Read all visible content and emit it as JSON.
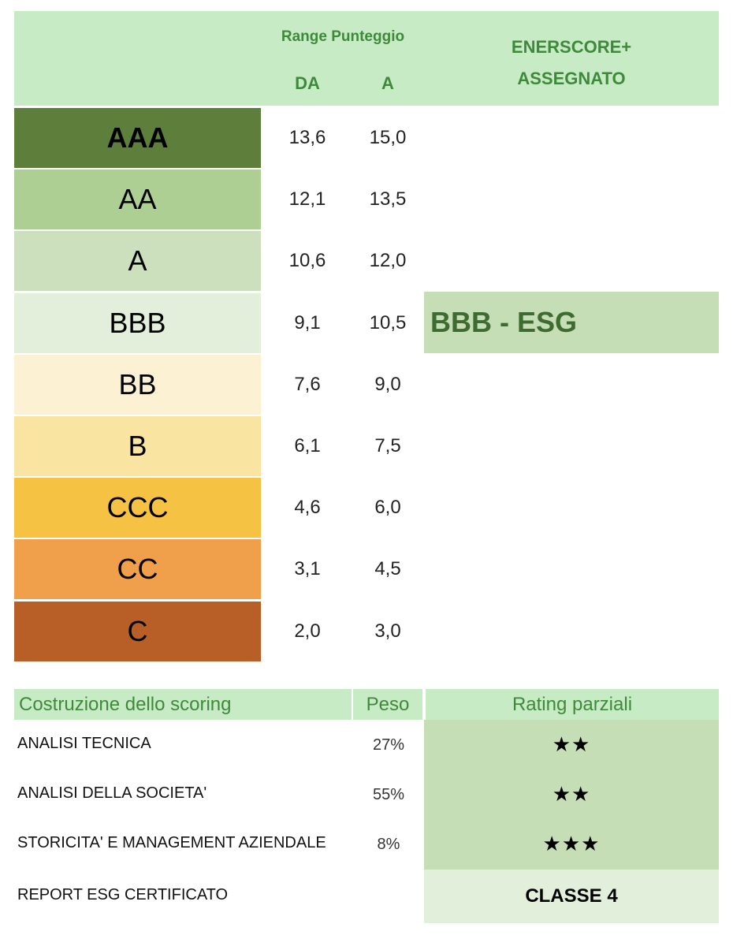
{
  "header": {
    "range_title": "Range Punteggio",
    "col_from": "DA",
    "col_to": "A",
    "assigned_title_1": "ENERSCORE+",
    "assigned_title_2": "ASSEGNATO"
  },
  "ratings": [
    {
      "grade": "AAA",
      "from": "13,6",
      "to": "15,0",
      "color": "#5e7f3b",
      "text_color": "#000000",
      "bold": true
    },
    {
      "grade": "AA",
      "from": "12,1",
      "to": "13,5",
      "color": "#aecf94",
      "text_color": "#000000",
      "bold": false
    },
    {
      "grade": "A",
      "from": "10,6",
      "to": "12,0",
      "color": "#cde0bd",
      "text_color": "#000000",
      "bold": false
    },
    {
      "grade": "BBB",
      "from": "9,1",
      "to": "10,5",
      "color": "#e3efda",
      "text_color": "#000000",
      "bold": false
    },
    {
      "grade": "BB",
      "from": "7,6",
      "to": "9,0",
      "color": "#fcf2d3",
      "text_color": "#000000",
      "bold": false
    },
    {
      "grade": "B",
      "from": "6,1",
      "to": "7,5",
      "color": "#fae4a2",
      "text_color": "#000000",
      "bold": false
    },
    {
      "grade": "CCC",
      "from": "4,6",
      "to": "6,0",
      "color": "#f6c244",
      "text_color": "#000000",
      "bold": false
    },
    {
      "grade": "CC",
      "from": "3,1",
      "to": "4,5",
      "color": "#f0a04a",
      "text_color": "#000000",
      "bold": false
    },
    {
      "grade": "C",
      "from": "2,0",
      "to": "3,0",
      "color": "#b85e27",
      "text_color": "#000000",
      "bold": false
    }
  ],
  "assigned": {
    "value": "BBB - ESG"
  },
  "scoring": {
    "col_construction": "Costruzione dello scoring",
    "col_weight": "Peso",
    "col_partial": "Rating parziali",
    "rows": [
      {
        "label": "ANALISI TECNICA",
        "weight": "27%",
        "stars": "★★"
      },
      {
        "label": "ANALISI DELLA SOCIETA'",
        "weight": "55%",
        "stars": "★★"
      },
      {
        "label": "STORICITA' E MANAGEMENT AZIENDALE",
        "weight": "8%",
        "stars": "★★★"
      }
    ],
    "report_label": "REPORT ESG CERTIFICATO",
    "report_class": "CLASSE 4"
  }
}
